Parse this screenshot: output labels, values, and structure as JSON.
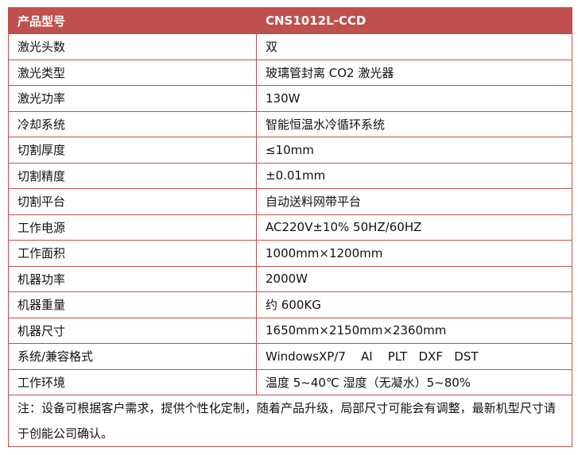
{
  "header": {
    "label": "产品型号",
    "value": "CNS1012L-CCD"
  },
  "rows": [
    {
      "label": "激光头数",
      "value": "双"
    },
    {
      "label": "激光类型",
      "value": "玻璃管封离 CO2 激光器"
    },
    {
      "label": "激光功率",
      "value": "130W"
    },
    {
      "label": "冷却系统",
      "value": "智能恒温水冷循环系统"
    },
    {
      "label": "切割厚度",
      "value": "≤10mm"
    },
    {
      "label": "切割精度",
      "value": "±0.01mm"
    },
    {
      "label": "切割平台",
      "value": "自动送料网带平台"
    },
    {
      "label": "工作电源",
      "value": "AC220V±10% 50HZ/60HZ"
    },
    {
      "label": "工作面积",
      "value": "1000mm×1200mm"
    },
    {
      "label": "机器功率",
      "value": "2000W"
    },
    {
      "label": "机器重量",
      "value": "约 600KG"
    },
    {
      "label": "机器尺寸",
      "value": "1650mm×2150mm×2360mm"
    },
    {
      "label": "系统/兼容格式",
      "value": "WindowsXP/7    AI    PLT   DXF   DST"
    },
    {
      "label": "工作环境",
      "value": "温度 5~40℃ 湿度（无凝水）5~80%"
    }
  ],
  "note": "注：设备可根据客户需求，提供个性化定制，随着产品升级，局部尺寸可能会有调整，最新机型尺寸请于创能公司确认。",
  "colors": {
    "header_bg": "#c0504d",
    "border": "#c0504d"
  }
}
